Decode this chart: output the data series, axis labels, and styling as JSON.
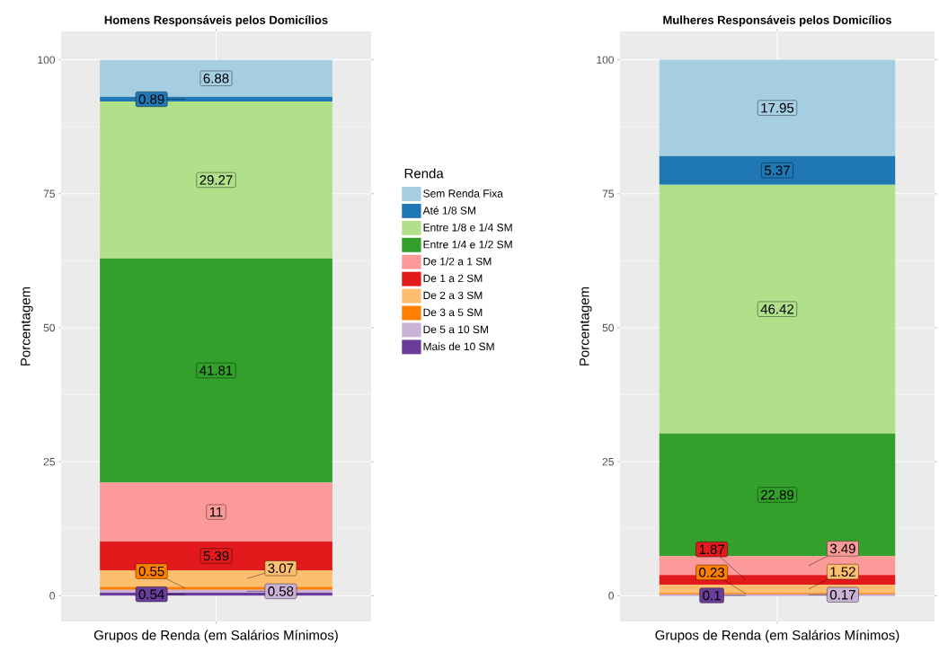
{
  "chart_data": [
    {
      "type": "bar",
      "stacked": true,
      "title": "Homens Responsáveis pelos Domicílios",
      "xlabel": "Grupos de Renda (em Salários Mínimos)",
      "ylabel": "Porcentagem",
      "legend_title": "Renda",
      "legend": "right",
      "grid": true,
      "data_labels": true,
      "categories": [
        null
      ],
      "ylim": [
        -4.8,
        105.3
      ],
      "yticks": [
        0,
        25,
        50,
        75,
        100
      ],
      "series": [
        {
          "name": "Mais de 10 SM",
          "color": "#6a3d9a",
          "values": [
            0.54
          ]
        },
        {
          "name": "De 5 a 10 SM",
          "color": "#cab2d6",
          "values": [
            0.58
          ]
        },
        {
          "name": "De 3 a 5 SM",
          "color": "#ff7f00",
          "values": [
            0.55
          ]
        },
        {
          "name": "De 2 a 3 SM",
          "color": "#fdbf6f",
          "values": [
            3.07
          ]
        },
        {
          "name": "De 1 a 2 SM",
          "color": "#e31a1c",
          "values": [
            5.39
          ]
        },
        {
          "name": "De 1/2 a 1 SM",
          "color": "#fb9a99",
          "values": [
            11
          ]
        },
        {
          "name": "Entre 1/4 e 1/2 SM",
          "color": "#33a02c",
          "values": [
            41.81
          ]
        },
        {
          "name": "Entre 1/8 e 1/4 SM",
          "color": "#b2df8a",
          "values": [
            29.27
          ]
        },
        {
          "name": "Até 1/8 SM",
          "color": "#1f78b4",
          "values": [
            0.89
          ]
        },
        {
          "name": "Sem Renda Fixa",
          "color": "#a6cee3",
          "values": [
            6.88
          ]
        }
      ]
    },
    {
      "type": "bar",
      "stacked": true,
      "title": "Mulheres Responsáveis pelos Domicílios",
      "xlabel": "Grupos de Renda (em Salários Mínimos)",
      "ylabel": "Porcentagem",
      "grid": true,
      "data_labels": true,
      "categories": [
        null
      ],
      "ylim": [
        -4.8,
        105.3
      ],
      "yticks": [
        0,
        25,
        50,
        75,
        100
      ],
      "series": [
        {
          "color": "#6a3d9a",
          "values": [
            0.1
          ]
        },
        {
          "color": "#cab2d6",
          "values": [
            0.17
          ]
        },
        {
          "color": "#ff7f00",
          "values": [
            0.23
          ]
        },
        {
          "color": "#fdbf6f",
          "values": [
            1.52
          ]
        },
        {
          "color": "#e31a1c",
          "values": [
            1.87
          ]
        },
        {
          "color": "#fb9a99",
          "values": [
            3.49
          ]
        },
        {
          "color": "#33a02c",
          "values": [
            22.89
          ]
        },
        {
          "color": "#b2df8a",
          "values": [
            46.42
          ]
        },
        {
          "color": "#1f78b4",
          "values": [
            5.37
          ]
        },
        {
          "color": "#a6cee3",
          "values": [
            17.95
          ]
        }
      ]
    }
  ]
}
